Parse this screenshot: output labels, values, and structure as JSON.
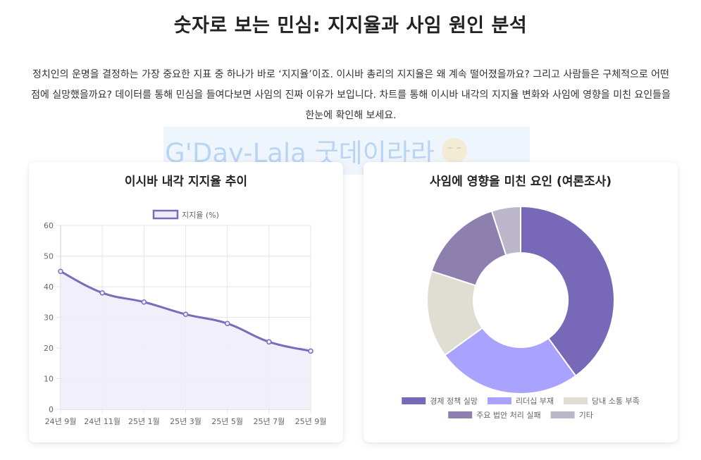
{
  "page": {
    "title": "숫자로 보는 민심: 지지율과 사임 원인 분석",
    "intro": "정치인의 운명을 결정하는 가장 중요한 지표 중 하나가 바로 ‘지지율’이죠. 이시바 총리의 지지율은 왜 계속 떨어졌을까요? 그리고 사람들은 구체적으로 어떤 점에 실망했을까요? 데이터를 통해 민심을 들여다보면 사임의 진짜 이유가 보입니다. 차트를 통해 이시바 내각의 지지율 변화와 사임에 영향을 미친 요인들을 한눈에 확인해 보세요.",
    "watermark": "G'Day-Lala 굿데이라라"
  },
  "chart_data": [
    {
      "type": "line",
      "title": "이시바 내각 지지율 추이",
      "categories": [
        "24년 9월",
        "24년 11월",
        "25년 1월",
        "25년 3월",
        "25년 5월",
        "25년 7월",
        "25년 9월"
      ],
      "series": [
        {
          "name": "지지율 (%)",
          "values": [
            45,
            38,
            35,
            31,
            28,
            22,
            19
          ]
        }
      ],
      "ylim": [
        0,
        60
      ],
      "yticks": [
        0,
        10,
        20,
        30,
        40,
        50,
        60
      ],
      "legend": "top",
      "grid": true,
      "colors": {
        "line": "#7b6bbf",
        "fill": "#efedf9"
      }
    },
    {
      "type": "pie",
      "title": "사임에 영향을 미친 요인 (여론조사)",
      "labels": [
        "경제 정책 실망",
        "리더십 부재",
        "당내 소통 부족",
        "주요 법안 처리 실패",
        "기타"
      ],
      "values": [
        40,
        25,
        15,
        15,
        5
      ],
      "colors": [
        "#7769b8",
        "#aaa2ff",
        "#e0ddd3",
        "#8e80ae",
        "#bcb6cb"
      ],
      "legend": "bottom"
    }
  ]
}
